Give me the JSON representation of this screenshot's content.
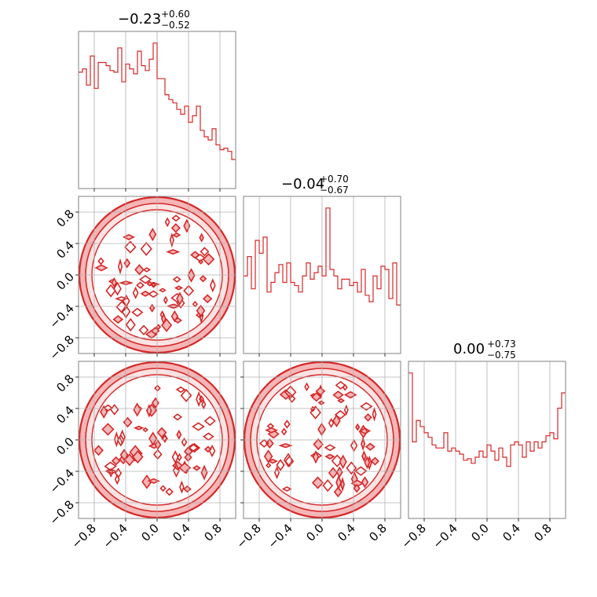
{
  "figure": {
    "colors": {
      "primary": "#d62728",
      "fill_light": "#f4b6b6",
      "grid": "#b0b0b0",
      "frame": "#808080"
    }
  },
  "chart_data": [
    {
      "type": "histogram",
      "panel": "diag-1",
      "title": {
        "median": "−0.23",
        "plus": "+0.60",
        "minus": "−0.52"
      },
      "x_range": [
        -1.0,
        1.0
      ],
      "x_ticks": [
        "−0.8",
        "−0.4",
        "0.0",
        "0.4",
        "0.8"
      ],
      "tick_labels_shown": false,
      "bin_edges_start": -1.0,
      "bin_width": 0.05,
      "values": [
        72,
        74,
        64,
        82,
        62,
        78,
        78,
        76,
        73,
        72,
        87,
        66,
        77,
        74,
        71,
        85,
        76,
        73,
        80,
        90,
        68,
        68,
        58,
        55,
        53,
        49,
        46,
        51,
        41,
        45,
        51,
        36,
        32,
        30,
        37,
        27,
        24,
        25,
        23,
        18
      ]
    },
    {
      "type": "contour",
      "panel": "lower-2-1",
      "description_visible": "filled circular contour region",
      "x_range": [
        -1.0,
        1.0
      ],
      "y_range": [
        -1.0,
        1.0
      ],
      "x_ticks": [
        "−0.8",
        "−0.4",
        "0.0",
        "0.4",
        "0.8"
      ],
      "y_ticks": [
        "0.8",
        "0.4",
        "0.0",
        "−0.4",
        "−0.8"
      ],
      "tick_labels_shown": {
        "x": false,
        "y": true
      }
    },
    {
      "type": "histogram",
      "panel": "diag-2",
      "title": {
        "median": "−0.04",
        "plus": "+0.70",
        "minus": "−0.67"
      },
      "x_range": [
        -1.0,
        1.0
      ],
      "x_ticks": [
        "−0.8",
        "−0.4",
        "0.0",
        "0.4",
        "0.8"
      ],
      "tick_labels_shown": false,
      "bin_edges_start": -1.0,
      "bin_width": 0.05,
      "values": [
        48,
        60,
        40,
        70,
        62,
        72,
        38,
        44,
        50,
        55,
        44,
        56,
        44,
        42,
        38,
        48,
        56,
        46,
        50,
        54,
        48,
        90,
        52,
        48,
        40,
        46,
        46,
        42,
        44,
        38,
        52,
        36,
        32,
        48,
        40,
        54,
        52,
        34,
        56,
        30
      ]
    },
    {
      "type": "contour",
      "panel": "lower-3-1",
      "x_range": [
        -1.0,
        1.0
      ],
      "y_range": [
        -1.0,
        1.0
      ],
      "x_ticks": [
        "−0.8",
        "−0.4",
        "0.0",
        "0.4",
        "0.8"
      ],
      "y_ticks": [
        "0.8",
        "0.4",
        "0.0",
        "−0.4",
        "−0.8"
      ],
      "tick_labels_shown": {
        "x": true,
        "y": true
      }
    },
    {
      "type": "contour",
      "panel": "lower-3-2",
      "x_range": [
        -1.0,
        1.0
      ],
      "y_range": [
        -1.0,
        1.0
      ],
      "x_ticks": [
        "−0.8",
        "−0.4",
        "0.0",
        "0.4",
        "0.8"
      ],
      "tick_labels_shown": {
        "x": true,
        "y": false
      }
    },
    {
      "type": "histogram",
      "panel": "diag-3",
      "title": {
        "median": "0.00",
        "plus": "+0.73",
        "minus": "−0.75"
      },
      "x_range": [
        -1.0,
        1.0
      ],
      "x_ticks": [
        "−0.8",
        "−0.4",
        "0.0",
        "0.4",
        "0.8"
      ],
      "tick_labels_shown": true,
      "bin_edges_start": -1.0,
      "bin_width": 0.05,
      "values": [
        95,
        50,
        64,
        60,
        56,
        53,
        48,
        46,
        46,
        56,
        44,
        46,
        44,
        42,
        38,
        39,
        36,
        40,
        44,
        40,
        48,
        44,
        38,
        46,
        40,
        34,
        48,
        50,
        48,
        40,
        50,
        44,
        50,
        46,
        50,
        54,
        56,
        52,
        72,
        82
      ]
    }
  ]
}
